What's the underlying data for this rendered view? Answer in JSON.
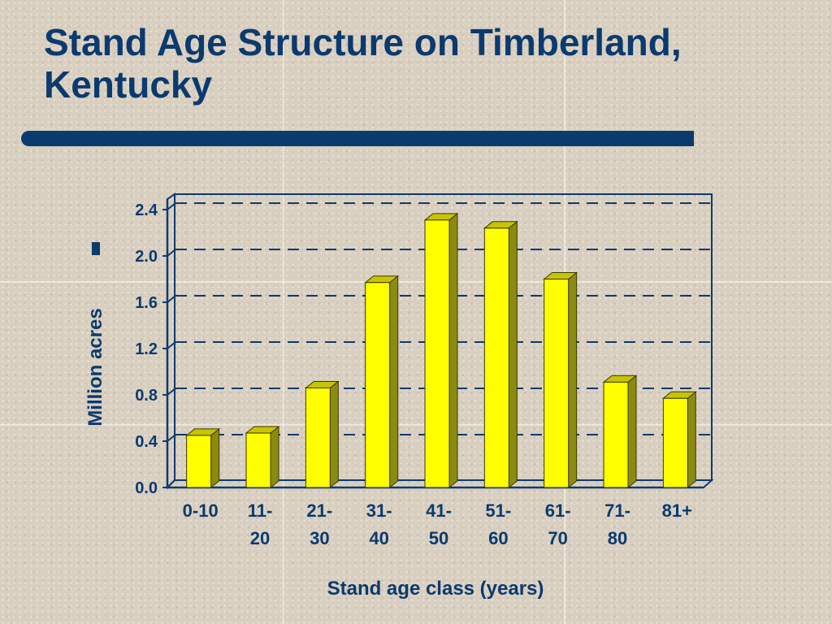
{
  "slide": {
    "title": "Stand Age Structure on Timberland, Kentucky"
  },
  "chart_data": {
    "type": "bar",
    "title": "Stand Age Structure on Timberland, Kentucky",
    "xlabel": "Stand age class (years)",
    "ylabel": "Million acres",
    "categories": [
      "0-10",
      "11-20",
      "21-30",
      "31-40",
      "41-50",
      "51-60",
      "61-70",
      "71-80",
      "81+"
    ],
    "category_lines": [
      [
        "0-10"
      ],
      [
        "11-",
        "20"
      ],
      [
        "21-",
        "30"
      ],
      [
        "31-",
        "40"
      ],
      [
        "41-",
        "50"
      ],
      [
        "51-",
        "60"
      ],
      [
        "61-",
        "70"
      ],
      [
        "71-",
        "80"
      ],
      [
        "81+"
      ]
    ],
    "values": [
      0.45,
      0.47,
      0.86,
      1.77,
      2.31,
      2.24,
      1.8,
      0.91,
      0.77
    ],
    "yticks": [
      "0.0",
      "0.4",
      "0.8",
      "1.2",
      "1.6",
      "2.0",
      "2.4"
    ],
    "ylim": [
      0,
      2.4
    ],
    "grid": "dashed horizontal",
    "legend": "none",
    "bar_color": "#ffff00",
    "bar_side_color": "#8c8a10",
    "frame_color": "#0b3a6e"
  }
}
